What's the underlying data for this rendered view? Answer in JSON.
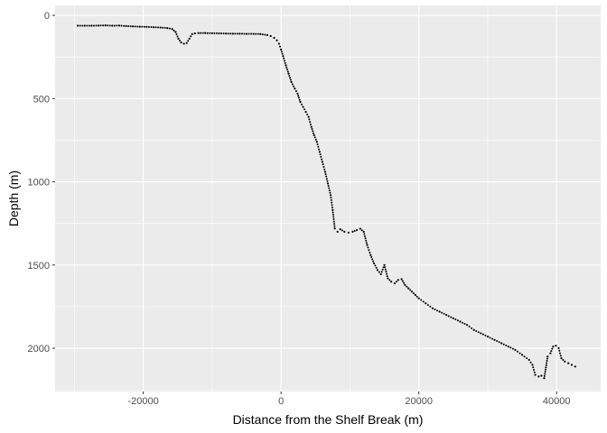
{
  "chart_data": {
    "type": "scatter",
    "title": "",
    "xlabel": "Distance from the Shelf Break (m)",
    "ylabel": "Depth (m)",
    "xlim": [
      -32800,
      46400
    ],
    "ylim": [
      -60,
      2260
    ],
    "y_reversed": true,
    "grid": true,
    "legend": "none",
    "x_ticks": [
      -20000,
      0,
      20000,
      40000
    ],
    "x_tick_labels": [
      "-20000",
      "0",
      "20000",
      "40000"
    ],
    "y_ticks": [
      0,
      500,
      1000,
      1500,
      2000
    ],
    "y_tick_labels": [
      "0",
      "500",
      "1000",
      "1500",
      "2000"
    ],
    "colors": {
      "panel": "#ebebeb",
      "grid": "#ffffff",
      "points": "#000000",
      "ticks": "#4d4d4d"
    },
    "points": [
      [
        -29500,
        62
      ],
      [
        -28500,
        62
      ],
      [
        -27500,
        62
      ],
      [
        -26500,
        61
      ],
      [
        -25500,
        60
      ],
      [
        -24500,
        62
      ],
      [
        -23500,
        61
      ],
      [
        -22500,
        64
      ],
      [
        -21500,
        66
      ],
      [
        -20500,
        68
      ],
      [
        -19500,
        69
      ],
      [
        -18500,
        71
      ],
      [
        -17500,
        73
      ],
      [
        -16500,
        76
      ],
      [
        -15800,
        82
      ],
      [
        -15300,
        100
      ],
      [
        -14900,
        140
      ],
      [
        -14500,
        163
      ],
      [
        -14100,
        170
      ],
      [
        -13700,
        166
      ],
      [
        -13300,
        140
      ],
      [
        -12900,
        112
      ],
      [
        -12500,
        108
      ],
      [
        -12000,
        106
      ],
      [
        -11000,
        106
      ],
      [
        -10000,
        107
      ],
      [
        -9000,
        108
      ],
      [
        -8000,
        109
      ],
      [
        -7000,
        110
      ],
      [
        -6000,
        110
      ],
      [
        -5000,
        111
      ],
      [
        -4000,
        111
      ],
      [
        -3000,
        112
      ],
      [
        -2000,
        118
      ],
      [
        -1500,
        124
      ],
      [
        -1000,
        135
      ],
      [
        -600,
        150
      ],
      [
        -300,
        170
      ],
      [
        0,
        205
      ],
      [
        300,
        245
      ],
      [
        700,
        300
      ],
      [
        1100,
        350
      ],
      [
        1500,
        400
      ],
      [
        2000,
        440
      ],
      [
        2400,
        470
      ],
      [
        2800,
        520
      ],
      [
        3200,
        550
      ],
      [
        3600,
        580
      ],
      [
        4000,
        610
      ],
      [
        4400,
        670
      ],
      [
        4800,
        720
      ],
      [
        5200,
        760
      ],
      [
        5600,
        820
      ],
      [
        6000,
        880
      ],
      [
        6400,
        940
      ],
      [
        6800,
        1010
      ],
      [
        7200,
        1080
      ],
      [
        7500,
        1170
      ],
      [
        7800,
        1280
      ],
      [
        8200,
        1300
      ],
      [
        8600,
        1285
      ],
      [
        9200,
        1300
      ],
      [
        9800,
        1305
      ],
      [
        10400,
        1300
      ],
      [
        11000,
        1290
      ],
      [
        11500,
        1282
      ],
      [
        12000,
        1300
      ],
      [
        12500,
        1380
      ],
      [
        13000,
        1440
      ],
      [
        13500,
        1490
      ],
      [
        14000,
        1530
      ],
      [
        14500,
        1555
      ],
      [
        15000,
        1500
      ],
      [
        15500,
        1580
      ],
      [
        16000,
        1600
      ],
      [
        16500,
        1610
      ],
      [
        17000,
        1590
      ],
      [
        17500,
        1585
      ],
      [
        18000,
        1620
      ],
      [
        18500,
        1640
      ],
      [
        19000,
        1660
      ],
      [
        19500,
        1680
      ],
      [
        20000,
        1700
      ],
      [
        21000,
        1730
      ],
      [
        22000,
        1760
      ],
      [
        23000,
        1780
      ],
      [
        24000,
        1800
      ],
      [
        25000,
        1820
      ],
      [
        26000,
        1840
      ],
      [
        27000,
        1860
      ],
      [
        28000,
        1890
      ],
      [
        29000,
        1910
      ],
      [
        30000,
        1930
      ],
      [
        31000,
        1950
      ],
      [
        32000,
        1970
      ],
      [
        33000,
        1990
      ],
      [
        34000,
        2010
      ],
      [
        35000,
        2040
      ],
      [
        36000,
        2070
      ],
      [
        36500,
        2100
      ],
      [
        36900,
        2160
      ],
      [
        37400,
        2170
      ],
      [
        37800,
        2165
      ],
      [
        38200,
        2180
      ],
      [
        38700,
        2050
      ],
      [
        39100,
        2030
      ],
      [
        39500,
        1990
      ],
      [
        39900,
        1985
      ],
      [
        40300,
        2000
      ],
      [
        40700,
        2060
      ],
      [
        41200,
        2080
      ],
      [
        41700,
        2090
      ],
      [
        42200,
        2100
      ],
      [
        42700,
        2110
      ]
    ]
  }
}
